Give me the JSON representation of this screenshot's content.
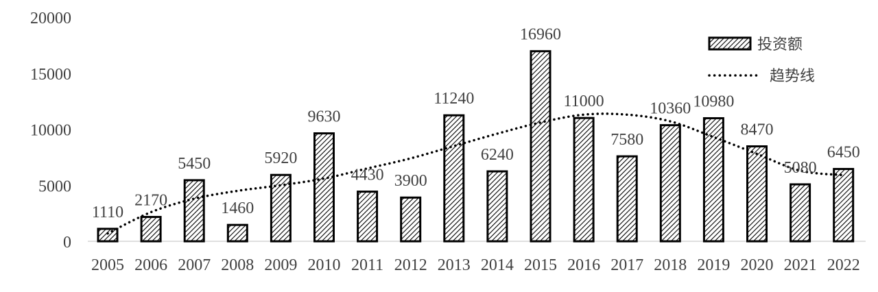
{
  "chart_data": {
    "type": "bar",
    "title": "",
    "xlabel": "",
    "ylabel": "",
    "categories": [
      "2005",
      "2006",
      "2007",
      "2008",
      "2009",
      "2010",
      "2011",
      "2012",
      "2013",
      "2014",
      "2015",
      "2016",
      "2017",
      "2018",
      "2019",
      "2020",
      "2021",
      "2022"
    ],
    "series": [
      {
        "name": "投资额",
        "type": "bar",
        "pattern": "diagonal-hatch",
        "values": [
          1110,
          2170,
          5450,
          1460,
          5920,
          9630,
          4430,
          3900,
          11240,
          6240,
          16960,
          11000,
          7580,
          10360,
          10980,
          8470,
          5080,
          6450
        ]
      },
      {
        "name": "趋势线",
        "type": "line",
        "style": "dotted",
        "values": [
          700,
          2600,
          3800,
          4500,
          5000,
          5600,
          6500,
          7400,
          8500,
          9600,
          10600,
          11300,
          11300,
          10700,
          9300,
          7800,
          6300,
          5900
        ]
      }
    ],
    "ylim": [
      0,
      20000
    ],
    "yticks": [
      "0",
      "5000",
      "10000",
      "15000",
      "20000"
    ],
    "grid": false,
    "legend": "top-right",
    "colors": {
      "bar_edge": "#000000",
      "bar_fill": "#ffffff",
      "text": "#404040",
      "trend": "#000000"
    }
  }
}
